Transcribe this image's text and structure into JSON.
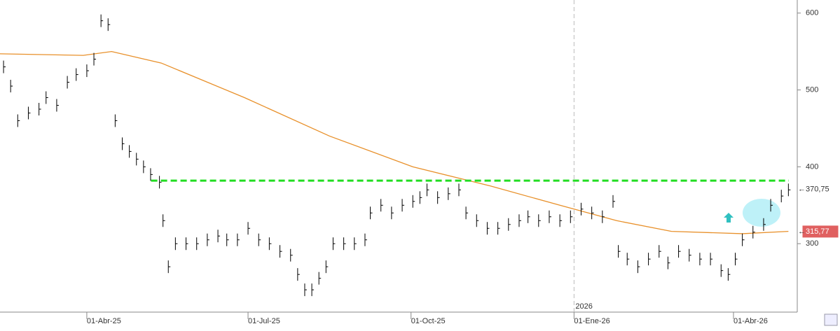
{
  "chart_data": {
    "type": "ohlc",
    "xlim": [
      -49,
      401
    ],
    "xticks": [
      {
        "value": 0,
        "label": "01-Abr-25"
      },
      {
        "value": 91,
        "label": "01-Jul-25"
      },
      {
        "value": 183,
        "label": "01-Oct-25"
      },
      {
        "value": 275,
        "label": "01-Ene-26"
      },
      {
        "value": 365,
        "label": "01-Abr-26"
      }
    ],
    "ylim": [
      211,
      617
    ],
    "yticks": [
      300,
      400,
      500,
      600
    ],
    "series": [
      {
        "name": "price",
        "color": "#000000",
        "x": [
          -47,
          -43,
          -39,
          -33,
          -27,
          -23,
          -17,
          -11,
          -6,
          0,
          4,
          8,
          12,
          16,
          20,
          24,
          28,
          32,
          36,
          41,
          43,
          46,
          50,
          56,
          62,
          68,
          74,
          79,
          85,
          91,
          97,
          103,
          109,
          115,
          119,
          123,
          127,
          131,
          135,
          139,
          145,
          151,
          157,
          160,
          166,
          172,
          178,
          184,
          188,
          192,
          198,
          204,
          210,
          214,
          220,
          226,
          232,
          238,
          244,
          249,
          255,
          261,
          267,
          273,
          279,
          285,
          291,
          297,
          300,
          305,
          311,
          317,
          323,
          328,
          334,
          340,
          346,
          352,
          358,
          362,
          366,
          370,
          376,
          382,
          386,
          392,
          396
        ],
        "values": [
          530,
          505,
          460,
          470,
          475,
          490,
          480,
          510,
          520,
          525,
          540,
          590,
          585,
          460,
          430,
          420,
          410,
          400,
          390,
          380,
          330,
          270,
          300,
          300,
          300,
          305,
          310,
          305,
          305,
          320,
          305,
          300,
          290,
          285,
          260,
          240,
          240,
          255,
          270,
          300,
          300,
          300,
          305,
          340,
          350,
          340,
          350,
          355,
          360,
          370,
          360,
          365,
          370,
          340,
          330,
          320,
          320,
          325,
          330,
          335,
          330,
          335,
          330,
          335,
          345,
          340,
          335,
          355,
          290,
          280,
          270,
          280,
          290,
          275,
          290,
          285,
          280,
          280,
          265,
          260,
          280,
          305,
          315,
          325,
          350,
          362,
          370
        ]
      },
      {
        "name": "moving-average",
        "color": "#e8902a",
        "x": [
          -49,
          -2,
          14,
          42,
          89,
          137,
          184,
          228,
          267,
          299,
          330,
          370,
          396
        ],
        "values": [
          547,
          545,
          550,
          535,
          490,
          440,
          400,
          375,
          350,
          330,
          316,
          313,
          316
        ]
      }
    ],
    "resistance": {
      "value": 382,
      "color": "#22dd22"
    },
    "year_label": "2026",
    "year_x": 275,
    "annotations": [
      {
        "label": "370,75",
        "value": 370.75,
        "color": "#ffffff"
      },
      {
        "label": "315,77",
        "value": 315.77,
        "color": "#e06060"
      }
    ]
  }
}
